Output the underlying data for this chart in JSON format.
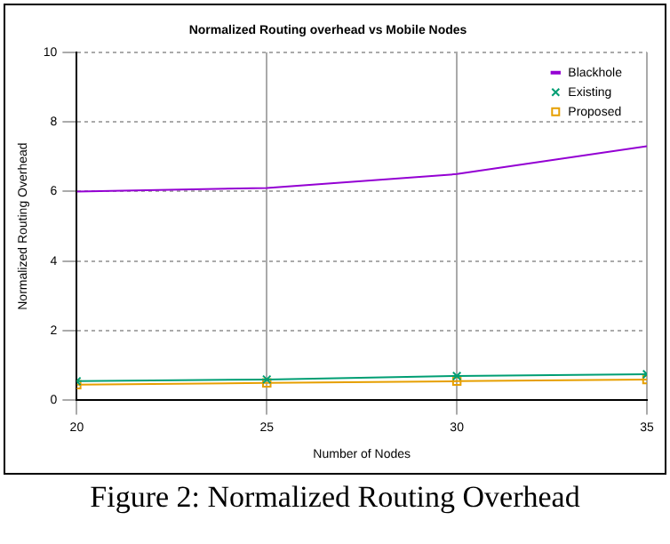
{
  "chart_data": {
    "type": "line",
    "title": "Normalized Routing overhead vs Mobile Nodes",
    "xlabel": "Number of Nodes",
    "ylabel": "Normalized Routing Overhead",
    "x": [
      20,
      25,
      30,
      35
    ],
    "series": [
      {
        "name": "Blackhole",
        "color": "#9400d3",
        "values": [
          6.0,
          6.1,
          6.5,
          7.3
        ],
        "marker": "none"
      },
      {
        "name": "Existing",
        "color": "#009e73",
        "values": [
          0.55,
          0.6,
          0.7,
          0.75
        ],
        "marker": "cross"
      },
      {
        "name": "Proposed",
        "color": "#e69f00",
        "values": [
          0.45,
          0.5,
          0.55,
          0.6
        ],
        "marker": "square"
      }
    ],
    "xlim": [
      20,
      35
    ],
    "xticks": [
      20,
      25,
      30,
      35
    ],
    "ylim": [
      0,
      10
    ],
    "yticks": [
      0,
      2,
      4,
      6,
      8,
      10
    ],
    "grid": true,
    "legend": "top right",
    "line_style": "solid",
    "annotations": [
      "Figure 2: Normalized Routing Overhead"
    ]
  }
}
